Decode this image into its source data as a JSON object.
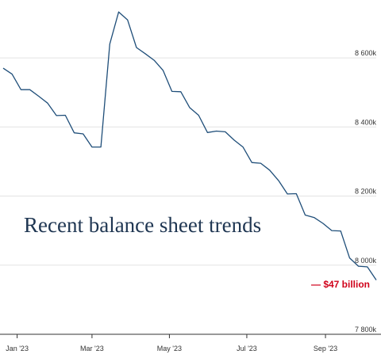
{
  "chart_data": {
    "type": "line",
    "title": "",
    "xlabel": "",
    "ylabel": "",
    "overlay_text": "Recent balance sheet trends",
    "annotation": {
      "text": "— $47 billion",
      "color": "#d0021b"
    },
    "line_color": "#1f4e79",
    "grid": true,
    "y_axis_side": "right",
    "ylim": [
      7800,
      8740
    ],
    "xlim": [
      "2022-12-21",
      "2023-10-11"
    ],
    "x_ticks": [
      {
        "date": "2023-01-01",
        "label": "Jan '23"
      },
      {
        "date": "2023-03-01",
        "label": "Mar '23"
      },
      {
        "date": "2023-05-01",
        "label": "May '23"
      },
      {
        "date": "2023-07-01",
        "label": "Jul '23"
      },
      {
        "date": "2023-09-01",
        "label": "Sep '23"
      }
    ],
    "y_ticks": [
      {
        "value": 7800,
        "label": "7 800k"
      },
      {
        "value": 8000,
        "label": "8 000k"
      },
      {
        "value": 8200,
        "label": "8 200k"
      },
      {
        "value": 8400,
        "label": "8 400k"
      },
      {
        "value": 8600,
        "label": "8 600k"
      }
    ],
    "series": [
      {
        "x": [
          "2022-12-21",
          "2022-12-28",
          "2023-01-04",
          "2023-01-11",
          "2023-01-18",
          "2023-01-25",
          "2023-02-01",
          "2023-02-08",
          "2023-02-15",
          "2023-02-22",
          "2023-03-01",
          "2023-03-08",
          "2023-03-15",
          "2023-03-22",
          "2023-03-29",
          "2023-04-05",
          "2023-04-12",
          "2023-04-19",
          "2023-04-26",
          "2023-05-03",
          "2023-05-10",
          "2023-05-17",
          "2023-05-24",
          "2023-05-31",
          "2023-06-07",
          "2023-06-14",
          "2023-06-21",
          "2023-06-28",
          "2023-07-05",
          "2023-07-12",
          "2023-07-19",
          "2023-07-26",
          "2023-08-02",
          "2023-08-09",
          "2023-08-16",
          "2023-08-23",
          "2023-08-30",
          "2023-09-06",
          "2023-09-13",
          "2023-09-20",
          "2023-09-27",
          "2023-10-04",
          "2023-10-11"
        ],
        "values": [
          8570,
          8553,
          8508,
          8508,
          8489,
          8469,
          8433,
          8434,
          8383,
          8380,
          8342,
          8342,
          8640,
          8733,
          8710,
          8630,
          8612,
          8593,
          8564,
          8503,
          8502,
          8456,
          8434,
          8384,
          8388,
          8386,
          8362,
          8342,
          8297,
          8295,
          8275,
          8245,
          8206,
          8207,
          8145,
          8138,
          8121,
          8100,
          8099,
          8021,
          7997,
          7995,
          7957
        ]
      }
    ]
  }
}
